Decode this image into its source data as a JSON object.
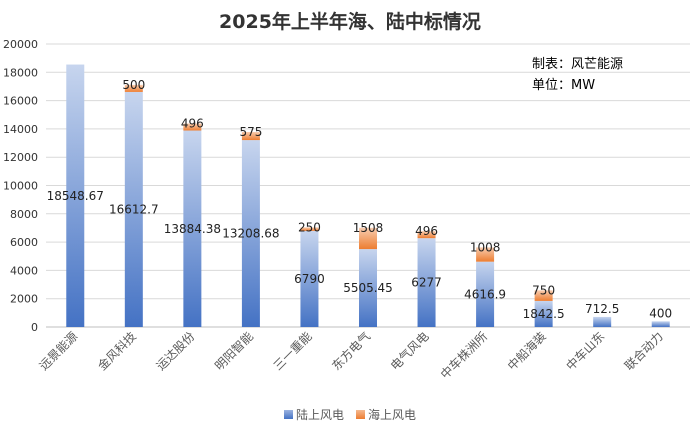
{
  "chart_data": {
    "type": "bar",
    "stacked": true,
    "title": "2025年上半年海、陆中标情况",
    "source_note": "制表：风芒能源",
    "unit_note": "单位：MW",
    "categories": [
      "远景能源",
      "金风科技",
      "运达股份",
      "明阳智能",
      "三一重能",
      "东方电气",
      "电气风电",
      "中车株洲所",
      "中船海装",
      "中车山东",
      "联合动力"
    ],
    "series": [
      {
        "name": "陆上风电",
        "color": "#4472C4",
        "values": [
          18548.67,
          16612.7,
          13884.38,
          13208.68,
          6790,
          5505.45,
          6277,
          4616.9,
          1842.5,
          712.5,
          400
        ],
        "labels": [
          "18548.67",
          "16612.7",
          "13884.38",
          "13208.68",
          "6790",
          "5505.45",
          "6277",
          "4616.9",
          "1842.5",
          "712.5",
          "400"
        ]
      },
      {
        "name": "海上风电",
        "color": "#ED7D31",
        "values": [
          0,
          500,
          496,
          575,
          250,
          1508,
          496,
          1008,
          750,
          0,
          0
        ],
        "labels": [
          "",
          "500",
          "496",
          "575",
          "250",
          "1508",
          "496",
          "1008",
          "750",
          "",
          ""
        ]
      }
    ],
    "ylim": [
      0,
      20000
    ],
    "yticks": [
      0,
      2000,
      4000,
      6000,
      8000,
      10000,
      12000,
      14000,
      16000,
      18000,
      20000
    ],
    "xlabel": "",
    "ylabel": "",
    "grid": true,
    "legend_position": "bottom-center"
  }
}
